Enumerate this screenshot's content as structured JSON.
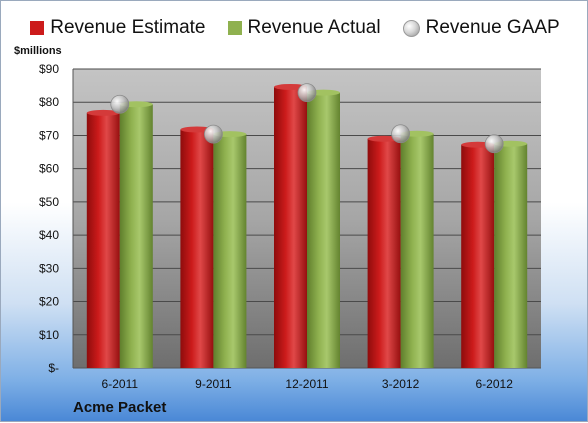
{
  "colors": {
    "estimate": "#cc1b1b",
    "actual": "#8fb14f",
    "gaap": "#c8c8c8",
    "plot_bg_top": "#c4c4c4",
    "plot_bg_bottom": "#6e6e6e"
  },
  "company": "Acme Packet",
  "chart_data": {
    "type": "bar",
    "categories": [
      "6-2011",
      "9-2011",
      "12-2011",
      "3-2012",
      "6-2012"
    ],
    "series": [
      {
        "name": "Revenue Estimate",
        "type": "bar",
        "values": [
          76.8,
          71.8,
          84.6,
          69.0,
          67.2
        ]
      },
      {
        "name": "Revenue Actual",
        "type": "bar",
        "values": [
          79.4,
          70.4,
          82.9,
          70.5,
          67.5
        ]
      },
      {
        "name": "Revenue GAAP",
        "type": "scatter",
        "values": [
          79.4,
          70.4,
          82.9,
          70.5,
          67.5
        ]
      }
    ],
    "ylabel": "$millions",
    "ylim": [
      0,
      90
    ],
    "yticks": [
      0,
      10,
      20,
      30,
      40,
      50,
      60,
      70,
      80,
      90
    ],
    "ytick_labels": [
      "$-",
      "$10",
      "$20",
      "$30",
      "$40",
      "$50",
      "$60",
      "$70",
      "$80",
      "$90"
    ],
    "grid": true,
    "legend": "top"
  }
}
